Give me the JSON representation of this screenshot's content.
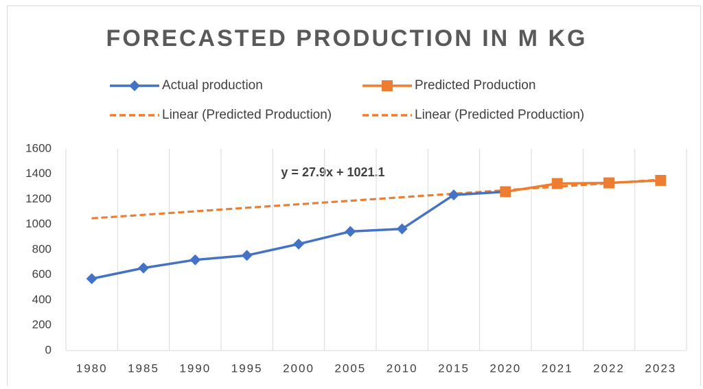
{
  "chart_data": {
    "type": "line",
    "title": "FORECASTED PRODUCTION IN M KG",
    "categories": [
      "1980",
      "1985",
      "1990",
      "1995",
      "2000",
      "2005",
      "2010",
      "2015",
      "2020",
      "2021",
      "2022",
      "2023"
    ],
    "series": [
      {
        "name": "Actual production",
        "color": "#4472c4",
        "marker": "diamond",
        "values": [
          570,
          655,
          720,
          755,
          845,
          945,
          965,
          1235,
          1260,
          null,
          null,
          null
        ]
      },
      {
        "name": "Predicted Production",
        "color": "#ed7d31",
        "marker": "square",
        "values": [
          null,
          null,
          null,
          null,
          null,
          null,
          null,
          null,
          1260,
          1325,
          1330,
          1350
        ]
      }
    ],
    "trendlines": [
      {
        "name": "Linear (Predicted Production)",
        "color": "#ed7d31",
        "values": [
          1049,
          1356
        ]
      },
      {
        "name": "Linear (Predicted Production)",
        "color": "#ed7d31",
        "values": [
          1049,
          1356
        ]
      }
    ],
    "annotation": "y = 27.9x + 1021.1",
    "ylim": [
      0,
      1600
    ],
    "yticks": [
      0,
      200,
      400,
      600,
      800,
      1000,
      1200,
      1400,
      1600
    ],
    "grid": true
  }
}
